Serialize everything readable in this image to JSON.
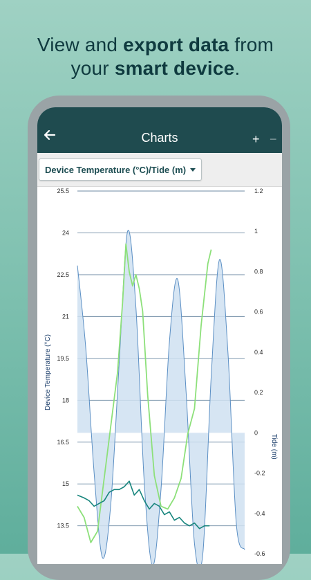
{
  "headline": {
    "line1_a": "View and ",
    "line1_b": "export data",
    "line1_c": " from",
    "line2_a": "your ",
    "line2_b": "smart device",
    "line2_c": "."
  },
  "appbar": {
    "title": "Charts",
    "back_icon": "arrow-left-icon",
    "add_label": "+",
    "remove_label": "−"
  },
  "selector": {
    "value": "Device Temperature (°C)/Tide (m)",
    "icon": "caret-down-icon"
  },
  "colors": {
    "accent": "#1f4b4f",
    "temperature_dark": "#17857d",
    "temperature_light": "#8de07a",
    "tide_line": "#5b8fc4",
    "tide_fill": "#cfe1f1"
  },
  "chart_data": {
    "type": "line",
    "ylabel": "Device Temperature (°C)",
    "y2label": "Tide (m)",
    "ylim": [
      12.5,
      25.5
    ],
    "y2lim": [
      -0.6,
      1.2
    ],
    "yticks": [
      "25.5",
      "24",
      "22.5",
      "21",
      "19.5",
      "18",
      "16.5",
      "15",
      "13.5"
    ],
    "y2ticks": [
      "1.2",
      "1",
      "0.8",
      "0.6",
      "0.4",
      "0.2",
      "0",
      "-0.2",
      "-0.4",
      "-0.6"
    ],
    "grid": true,
    "series": [
      {
        "name": "Tide (m)",
        "axis": "right",
        "x": [
          0,
          0.05,
          0.1,
          0.15,
          0.2,
          0.25,
          0.3,
          0.35,
          0.4,
          0.45,
          0.5,
          0.55,
          0.6,
          0.65,
          0.7,
          0.75,
          0.8,
          0.85,
          0.9,
          0.95,
          1.0
        ],
        "values": [
          0.83,
          0.42,
          -0.2,
          -0.62,
          -0.35,
          0.35,
          1.0,
          0.62,
          -0.25,
          -0.66,
          -0.28,
          0.45,
          0.76,
          0.2,
          -0.55,
          -0.6,
          0.28,
          0.86,
          0.4,
          -0.45,
          -0.58
        ]
      },
      {
        "name": "Device Temperature (°C)",
        "axis": "left",
        "x": [
          0,
          0.04,
          0.08,
          0.12,
          0.16,
          0.2,
          0.24,
          0.27,
          0.29,
          0.31,
          0.33,
          0.35,
          0.37,
          0.39,
          0.42,
          0.46,
          0.5,
          0.54,
          0.58,
          0.62,
          0.66,
          0.7,
          0.74,
          0.78,
          0.8
        ],
        "values": [
          14.2,
          13.8,
          12.9,
          13.3,
          15.2,
          17.1,
          19.0,
          21.5,
          23.6,
          22.6,
          22.1,
          22.5,
          22.0,
          21.2,
          18.2,
          15.3,
          14.2,
          14.1,
          14.5,
          15.2,
          16.8,
          17.7,
          20.7,
          22.9,
          23.4
        ]
      },
      {
        "name": "Device Temperature (°C) dark",
        "axis": "left",
        "x": [
          0,
          0.04,
          0.07,
          0.1,
          0.13,
          0.16,
          0.19,
          0.22,
          0.25,
          0.28,
          0.31,
          0.34,
          0.37,
          0.4,
          0.43,
          0.46,
          0.49,
          0.52,
          0.55,
          0.58,
          0.61,
          0.64,
          0.67,
          0.7,
          0.73,
          0.76,
          0.79
        ],
        "values": [
          14.6,
          14.5,
          14.4,
          14.2,
          14.3,
          14.4,
          14.7,
          14.8,
          14.8,
          14.9,
          15.1,
          14.6,
          14.8,
          14.4,
          14.1,
          14.3,
          14.2,
          13.9,
          14.0,
          13.7,
          13.8,
          13.6,
          13.5,
          13.6,
          13.4,
          13.5,
          13.5
        ]
      }
    ]
  }
}
